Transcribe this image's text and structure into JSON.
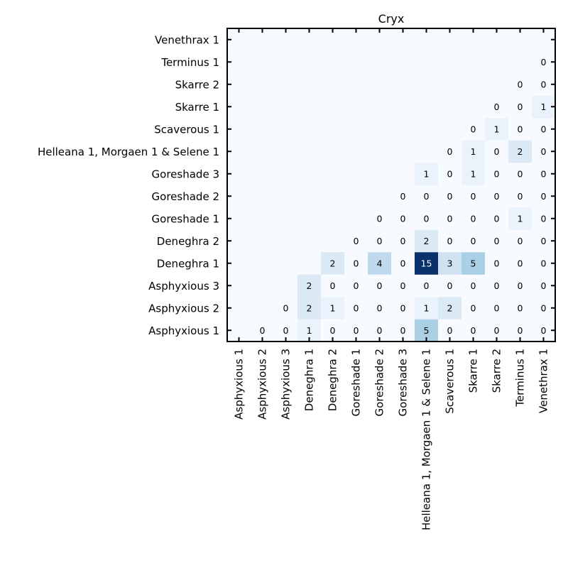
{
  "chart_data": {
    "type": "heatmap",
    "title": "Cryx",
    "xlabel": "",
    "ylabel": "",
    "x_categories": [
      "Asphyxious 1",
      "Asphyxious 2",
      "Asphyxious 3",
      "Deneghra 1",
      "Deneghra 2",
      "Goreshade 1",
      "Goreshade 2",
      "Goreshade 3",
      "Helleana 1, Morgaen 1 & Selene 1",
      "Scaverous 1",
      "Skarre 1",
      "Skarre 2",
      "Terminus 1",
      "Venethrax 1"
    ],
    "y_categories": [
      "Asphyxious 1",
      "Asphyxious 2",
      "Asphyxious 3",
      "Deneghra 1",
      "Deneghra 2",
      "Goreshade 1",
      "Goreshade 2",
      "Goreshade 3",
      "Helleana 1, Morgaen 1 & Selene 1",
      "Scaverous 1",
      "Skarre 1",
      "Skarre 2",
      "Terminus 1",
      "Venethrax 1"
    ],
    "values": [
      [
        null,
        0,
        0,
        1,
        0,
        0,
        0,
        0,
        5,
        0,
        0,
        0,
        0,
        0
      ],
      [
        null,
        null,
        0,
        2,
        1,
        0,
        0,
        0,
        1,
        2,
        0,
        0,
        0,
        0
      ],
      [
        null,
        null,
        null,
        2,
        0,
        0,
        0,
        0,
        0,
        0,
        0,
        0,
        0,
        0
      ],
      [
        null,
        null,
        null,
        null,
        2,
        0,
        4,
        0,
        15,
        3,
        5,
        0,
        0,
        0
      ],
      [
        null,
        null,
        null,
        null,
        null,
        0,
        0,
        0,
        2,
        0,
        0,
        0,
        0,
        0
      ],
      [
        null,
        null,
        null,
        null,
        null,
        null,
        0,
        0,
        0,
        0,
        0,
        0,
        1,
        0
      ],
      [
        null,
        null,
        null,
        null,
        null,
        null,
        null,
        0,
        0,
        0,
        0,
        0,
        0,
        0
      ],
      [
        null,
        null,
        null,
        null,
        null,
        null,
        null,
        null,
        1,
        0,
        1,
        0,
        0,
        0
      ],
      [
        null,
        null,
        null,
        null,
        null,
        null,
        null,
        null,
        null,
        0,
        1,
        0,
        2,
        0
      ],
      [
        null,
        null,
        null,
        null,
        null,
        null,
        null,
        null,
        null,
        null,
        0,
        1,
        0,
        0
      ],
      [
        null,
        null,
        null,
        null,
        null,
        null,
        null,
        null,
        null,
        null,
        null,
        0,
        0,
        1
      ],
      [
        null,
        null,
        null,
        null,
        null,
        null,
        null,
        null,
        null,
        null,
        null,
        null,
        0,
        0
      ],
      [
        null,
        null,
        null,
        null,
        null,
        null,
        null,
        null,
        null,
        null,
        null,
        null,
        null,
        0
      ],
      [
        null,
        null,
        null,
        null,
        null,
        null,
        null,
        null,
        null,
        null,
        null,
        null,
        null,
        null
      ]
    ],
    "y_order": "bottom-to-top",
    "colormap": "Blues",
    "vmin": 0,
    "vmax": 15,
    "grid": false,
    "colors": {
      "low": "#f7fbff",
      "high": "#08306b",
      "text_dark": "#000000",
      "text_light": "#ffffff"
    }
  }
}
